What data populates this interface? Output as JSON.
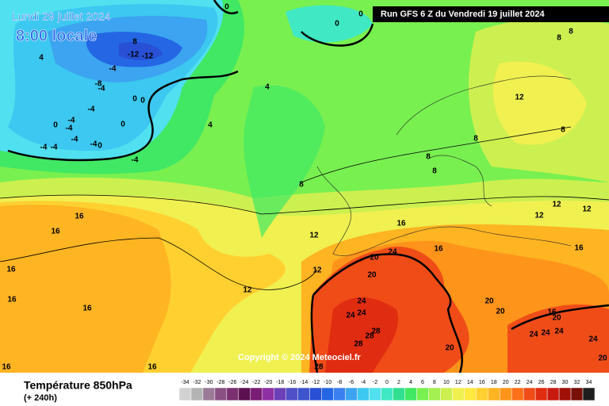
{
  "header": {
    "date": "Lundi 29 juillet 2024",
    "time": "8:00 locale",
    "run": "Run GFS 6 Z du Vendredi 19 juillet 2024"
  },
  "map": {
    "copyright": "Copyright © 2024 Meteociel.fr",
    "contour_labels": [
      "0",
      "0",
      "0",
      "0",
      "8",
      "-12",
      "-12",
      "4",
      "-4",
      "-8",
      "-4",
      "4",
      "0",
      "-4",
      "0",
      "-4",
      "-4",
      "0",
      "4",
      "-4",
      "-4",
      "0",
      "-4",
      "-4",
      "-4",
      "8",
      "8",
      "8",
      "12",
      "8",
      "8",
      "8",
      "8",
      "12",
      "12",
      "12",
      "16",
      "16",
      "12",
      "16",
      "20",
      "24",
      "16",
      "16",
      "12",
      "20",
      "16",
      "12",
      "16",
      "16",
      "24",
      "20",
      "20",
      "24",
      "24",
      "16",
      "20",
      "28",
      "28",
      "24",
      "24",
      "24",
      "24",
      "28",
      "20",
      "16",
      "16",
      "28",
      "20"
    ]
  },
  "footer": {
    "title": "Température 850hPa",
    "subtitle": "(+ 240h)"
  },
  "legend": {
    "ticks": [
      -34,
      -32,
      -30,
      -28,
      -26,
      -24,
      -22,
      -20,
      -18,
      -16,
      -14,
      -12,
      -10,
      -8,
      -6,
      -4,
      -2,
      0,
      2,
      4,
      6,
      8,
      10,
      12,
      14,
      16,
      18,
      20,
      22,
      24,
      26,
      28,
      30,
      32,
      34
    ],
    "colors": [
      "#d2d2d2",
      "#b4b4b4",
      "#9a7a96",
      "#8a5084",
      "#7a3070",
      "#5c1050",
      "#7a1c76",
      "#9030a4",
      "#6c40b8",
      "#5050c8",
      "#3c54cc",
      "#2850d4",
      "#2466e4",
      "#3a80f0",
      "#3ca4f0",
      "#3cc8f0",
      "#50e0f0",
      "#40e8c4",
      "#30e090",
      "#40e864",
      "#78f050",
      "#a4f050",
      "#ccf050",
      "#f0f050",
      "#ffe840",
      "#ffd030",
      "#ffb422",
      "#ff941a",
      "#ff7018",
      "#f04c18",
      "#e02c10",
      "#c81a10",
      "#a01008",
      "#781008",
      "#1e1e1e"
    ]
  }
}
